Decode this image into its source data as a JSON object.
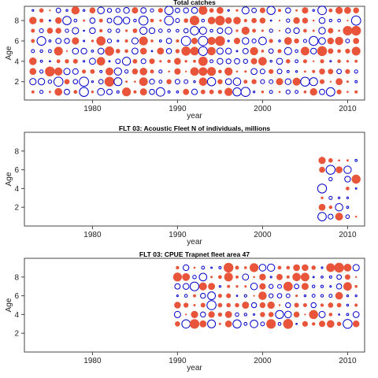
{
  "colors": {
    "positive": "#e8553a",
    "negative": "#0000cc",
    "axis": "#444444"
  },
  "chart_data": [
    {
      "type": "scatter",
      "subtype": "bubble-residuals",
      "title": "Total catches",
      "xlabel": "year",
      "ylabel": "Age",
      "xlim": [
        1972,
        2012
      ],
      "ylim": [
        0.2,
        9.4
      ],
      "xticks": [
        1980,
        1990,
        2000,
        2010
      ],
      "yticks": [
        2,
        4,
        6,
        8
      ],
      "years": [
        1973,
        1974,
        1975,
        1976,
        1977,
        1978,
        1979,
        1980,
        1981,
        1982,
        1983,
        1984,
        1985,
        1986,
        1987,
        1988,
        1989,
        1990,
        1991,
        1992,
        1993,
        1994,
        1995,
        1996,
        1997,
        1998,
        1999,
        2000,
        2001,
        2002,
        2003,
        2004,
        2005,
        2006,
        2007,
        2008,
        2009,
        2010,
        2011
      ],
      "ages": [
        1,
        2,
        3,
        4,
        5,
        6,
        7,
        8,
        9
      ],
      "seed": 11,
      "coverage": 1.0
    },
    {
      "type": "scatter",
      "subtype": "bubble-residuals",
      "title": "FLT 03: Acoustic Fleet  N of individuals, millions",
      "xlabel": "year",
      "ylabel": "Age",
      "xlim": [
        1972,
        2012
      ],
      "ylim": [
        0,
        10
      ],
      "xticks": [
        1980,
        1990,
        2000,
        2010
      ],
      "yticks": [
        2,
        4,
        6,
        8
      ],
      "years": [
        2007,
        2008,
        2009,
        2010,
        2011
      ],
      "ages": [
        1,
        2,
        3,
        4,
        5,
        6,
        7
      ],
      "seed": 29,
      "coverage": 0.92
    },
    {
      "type": "scatter",
      "subtype": "bubble-residuals",
      "title": "FLT 03: CPUE Trapnet fleet area 47",
      "xlabel": "year",
      "ylabel": "Age",
      "xlim": [
        1972,
        2012
      ],
      "ylim": [
        0,
        10
      ],
      "xticks": [
        1980,
        1990,
        2000,
        2010
      ],
      "yticks": [
        2,
        4,
        6,
        8
      ],
      "years": [
        1990,
        1991,
        1992,
        1993,
        1994,
        1995,
        1996,
        1997,
        1998,
        1999,
        2000,
        2001,
        2002,
        2003,
        2004,
        2005,
        2006,
        2007,
        2008,
        2009,
        2010,
        2011
      ],
      "ages": [
        3,
        4,
        5,
        6,
        7,
        8,
        9
      ],
      "seed": 47,
      "coverage": 1.0
    }
  ]
}
